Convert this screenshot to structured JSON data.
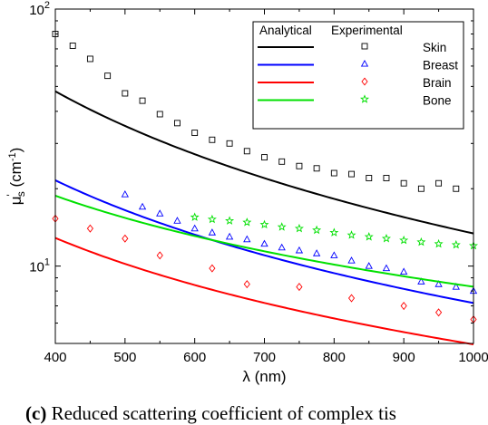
{
  "chart_data": {
    "type": "scatter",
    "xlabel": "λ (nm)",
    "ylabel": "μ's (cm-1)",
    "ylabel_main": "μ",
    "ylabel_sub": "s",
    "ylabel_sup": "'",
    "ylabel_unit": "(cm",
    "ylabel_unit_sup": "-1",
    "ylabel_close": ")",
    "xlim": [
      400,
      1000
    ],
    "ylim": [
      5,
      100
    ],
    "y_scale": "log",
    "x_ticks": [
      "400",
      "500",
      "600",
      "700",
      "800",
      "900",
      "1000"
    ],
    "y_tick_labels": [
      {
        "value": 10,
        "base": "10",
        "exp": "1"
      },
      {
        "value": 100,
        "base": "10",
        "exp": "2"
      }
    ],
    "legend": {
      "placement": "top-right",
      "header_analytical": "Analytical",
      "header_experimental": "Experimental"
    },
    "series": [
      {
        "name": "Skin",
        "color": "#000000",
        "marker": "square",
        "analytical": {
          "a": 35.1,
          "b": 1.39
        },
        "experimental": {
          "x": [
            400,
            425,
            450,
            475,
            500,
            525,
            550,
            575,
            600,
            625,
            650,
            675,
            700,
            725,
            750,
            775,
            800,
            825,
            850,
            875,
            900,
            925,
            950,
            975
          ],
          "y": [
            80,
            72,
            64,
            55,
            47,
            44,
            39,
            36,
            33,
            31,
            30,
            28,
            26.5,
            25.5,
            24.5,
            24,
            23,
            22.8,
            22,
            22,
            21,
            20,
            21,
            20
          ]
        }
      },
      {
        "name": "Breast",
        "color": "#0000ff",
        "marker": "triangle",
        "analytical": {
          "a": 16.5,
          "b": 1.2
        },
        "experimental": {
          "x": [
            500,
            525,
            550,
            575,
            600,
            625,
            650,
            675,
            700,
            725,
            750,
            775,
            800,
            825,
            850,
            875,
            900,
            925,
            950,
            975,
            1000
          ],
          "y": [
            19,
            17,
            16,
            15,
            14,
            13.5,
            13,
            12.7,
            12.2,
            11.8,
            11.5,
            11.2,
            11,
            10.5,
            10,
            9.8,
            9.5,
            8.7,
            8.5,
            8.3,
            8
          ]
        }
      },
      {
        "name": "Brain",
        "color": "#ff0000",
        "marker": "diamond",
        "analytical": {
          "a": 10.2,
          "b": 1.04
        },
        "experimental": {
          "x": [
            400,
            450,
            500,
            550,
            625,
            675,
            750,
            825,
            900,
            950,
            1000
          ],
          "y": [
            15.3,
            14,
            12.8,
            11,
            9.8,
            8.5,
            8.3,
            7.5,
            7,
            6.6,
            6.2
          ]
        }
      },
      {
        "name": "Bone",
        "color": "#00e000",
        "marker": "star",
        "analytical": {
          "a": 15.4,
          "b": 0.89
        },
        "experimental": {
          "x": [
            600,
            625,
            650,
            675,
            700,
            725,
            750,
            775,
            800,
            825,
            850,
            875,
            900,
            925,
            950,
            975,
            1000
          ],
          "y": [
            15.5,
            15.2,
            15,
            14.8,
            14.5,
            14.2,
            14,
            13.8,
            13.5,
            13.2,
            13,
            12.8,
            12.6,
            12.4,
            12.2,
            12.1,
            12
          ]
        }
      }
    ]
  },
  "caption": {
    "prefix": "(c)",
    "text": " Reduced scattering coefficient of complex tis"
  }
}
